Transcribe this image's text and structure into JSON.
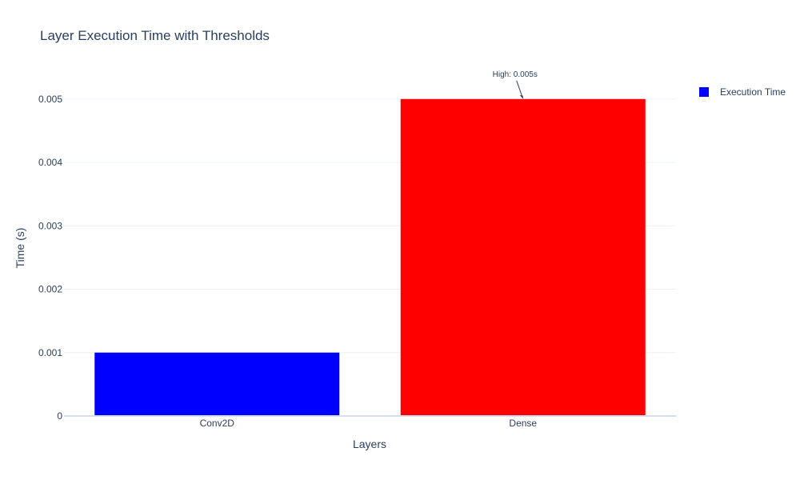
{
  "chart_data": {
    "type": "bar",
    "title": "Layer Execution Time with Thresholds",
    "xlabel": "Layers",
    "ylabel": "Time (s)",
    "categories": [
      "Conv2D",
      "Dense"
    ],
    "series": [
      {
        "name": "Execution Time",
        "values": [
          0.001,
          0.005
        ],
        "colors": [
          "#0000ff",
          "#ff0000"
        ],
        "legend_color": "#0000ff"
      }
    ],
    "ylim": [
      0,
      0.0053
    ],
    "yticks": [
      0,
      0.001,
      0.002,
      0.003,
      0.004,
      0.005
    ],
    "ytick_labels": [
      "0",
      "0.001",
      "0.002",
      "0.003",
      "0.004",
      "0.005"
    ],
    "grid": true,
    "legend_position": "top-right",
    "annotations": [
      {
        "category": "Dense",
        "value": 0.005,
        "text": "High: 0.005s"
      }
    ]
  }
}
